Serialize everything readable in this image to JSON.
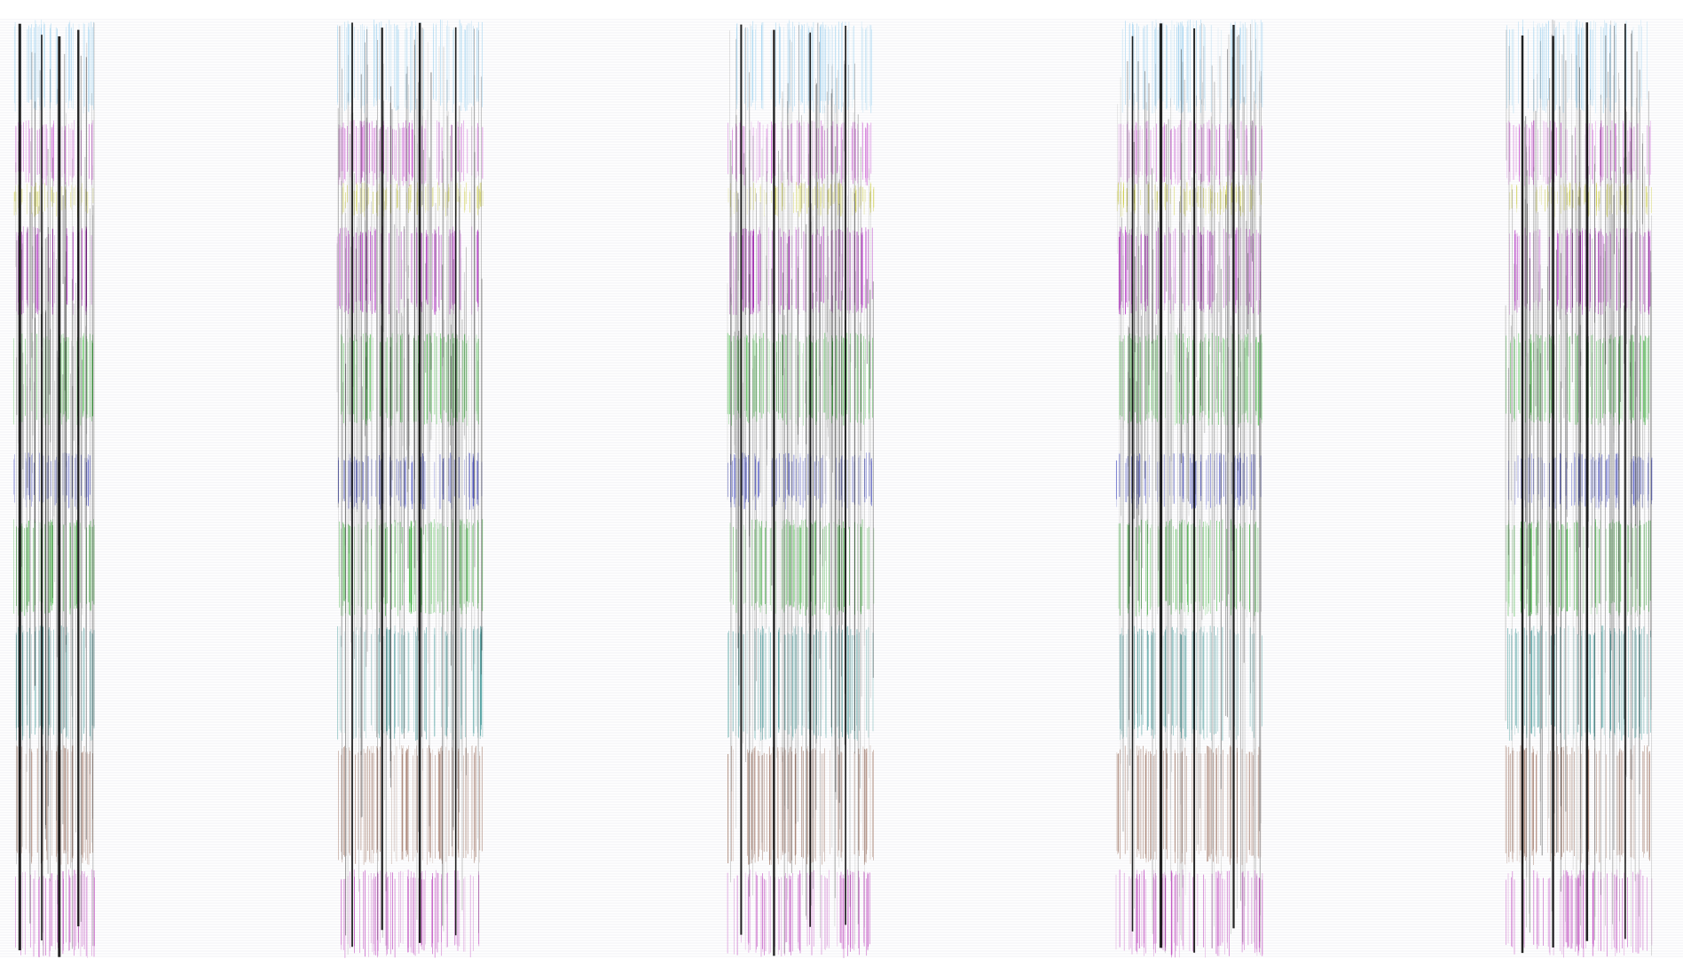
{
  "figure": {
    "background": "#ffffff",
    "line_color": "#000000",
    "hline_color": "#c8c8d2",
    "panel_count": 5,
    "band_colors": [
      "#8fcbee",
      "#c03cc8",
      "#c8c832",
      "#a000b4",
      "#28b428",
      "#1e28b4",
      "#18a018",
      "#288c8c",
      "#8c5a46",
      "#b428b4"
    ]
  }
}
